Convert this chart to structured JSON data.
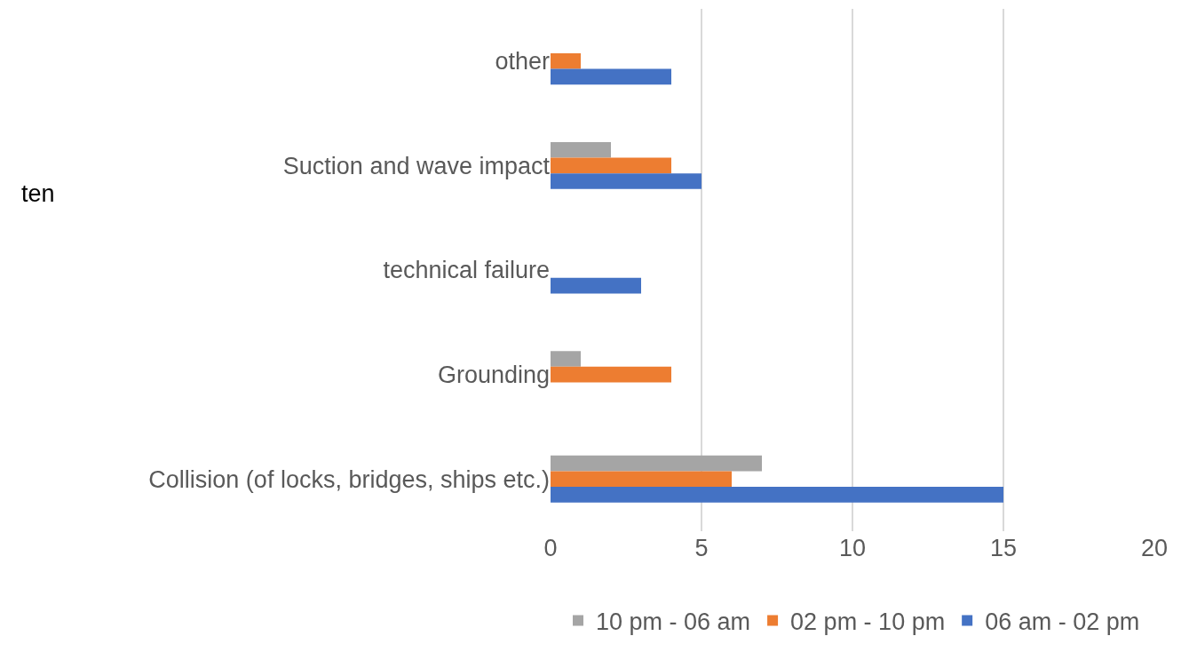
{
  "chart_data": {
    "type": "bar",
    "orientation": "horizontal",
    "categories": [
      "other",
      "Suction and wave impact",
      "technical failure",
      "Grounding",
      "Collision (of locks, bridges, ships etc.)"
    ],
    "series": [
      {
        "name": "10 pm - 06 am",
        "color": "#a5a5a5",
        "values": [
          null,
          2,
          null,
          1,
          7
        ]
      },
      {
        "name": "02 pm - 10 pm",
        "color": "#ed7d31",
        "values": [
          1,
          4,
          null,
          4,
          6
        ]
      },
      {
        "name": "06 am - 02 pm",
        "color": "#4472c4",
        "values": [
          4,
          5,
          3,
          null,
          15
        ]
      }
    ],
    "xlim": [
      0,
      20
    ],
    "xticks": [
      0,
      5,
      10,
      15,
      20
    ],
    "grid": "x",
    "legend": "bottom",
    "annotations": [
      "ten"
    ]
  }
}
